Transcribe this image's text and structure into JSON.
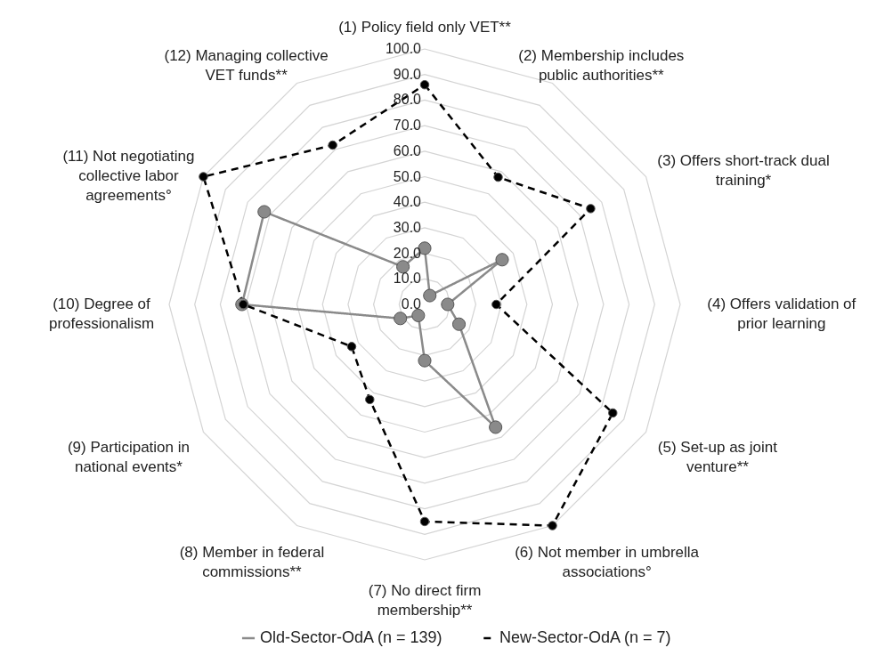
{
  "chart_data": {
    "type": "radar",
    "categories": [
      "(1) Policy field only VET**",
      "(2) Membership includes public authorities**",
      "(3) Offers short-track dual training*",
      "(4) Offers validation of prior learning",
      "(5) Set-up as joint venture**",
      "(6) Not member in umbrella associations°",
      "(7) No direct firm membership**",
      "(8) Member in federal commissions**",
      "(9) Participation in national events*",
      "(10) Degree of professionalism",
      "(11) Not negotiating collective labor agreements°",
      "(12) Managing collective VET funds**"
    ],
    "series": [
      {
        "name": "Old-Sector-OdA (n = 139)",
        "color": "#8a8a8a",
        "line_style": "solid",
        "values": [
          22,
          4,
          35,
          9,
          15.5,
          55.5,
          22,
          5,
          11,
          71.5,
          72.5,
          17
        ]
      },
      {
        "name": "New-Sector-OdA (n = 7)",
        "color": "#000000",
        "line_style": "dashed",
        "values": [
          86,
          57.5,
          75,
          28,
          85,
          100,
          85,
          43,
          33,
          71,
          100,
          72
        ]
      }
    ],
    "ylim": [
      0,
      100
    ],
    "yticks": [
      {
        "value": 0,
        "label": "0.0"
      },
      {
        "value": 10,
        "label": "10.0"
      },
      {
        "value": 20,
        "label": "20.0"
      },
      {
        "value": 30,
        "label": "30.0"
      },
      {
        "value": 40,
        "label": "40.0"
      },
      {
        "value": 50,
        "label": "50.0"
      },
      {
        "value": 60,
        "label": "60.0"
      },
      {
        "value": 70,
        "label": "70.0"
      },
      {
        "value": 80,
        "label": "80.0"
      },
      {
        "value": 90,
        "label": "90.0"
      },
      {
        "value": 100,
        "label": "100.0"
      }
    ],
    "grid": true,
    "legend": "bottom",
    "marker": "circle"
  }
}
